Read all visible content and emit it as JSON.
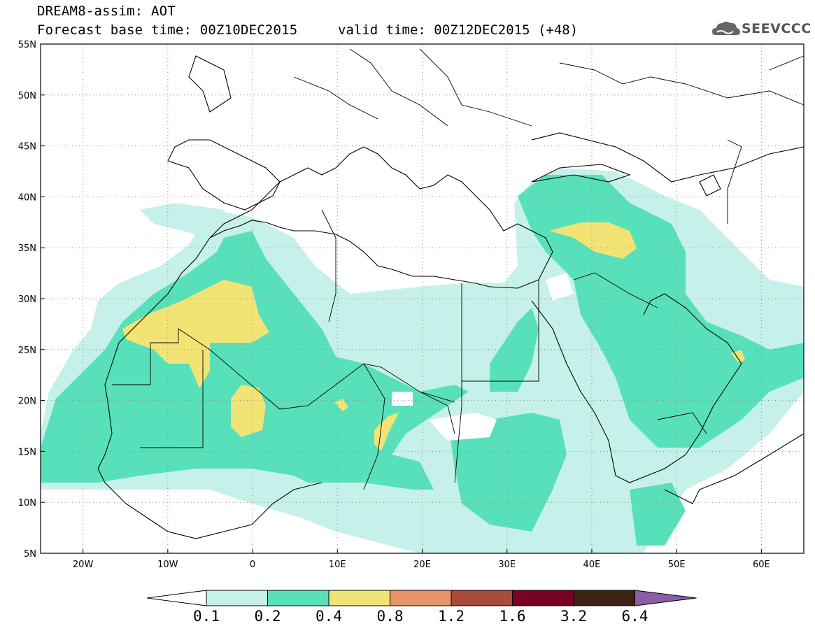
{
  "header": {
    "title_line1": "DREAM8-assim: AOT",
    "title_line2": "Forecast base time: 00Z10DEC2015",
    "valid_time": "valid time: 00Z12DEC2015 (+48)",
    "logo_text": "SEEVCCC",
    "logo_icon": "cloud-icon"
  },
  "map": {
    "lat_labels": [
      "55N",
      "50N",
      "45N",
      "40N",
      "35N",
      "30N",
      "25N",
      "20N",
      "15N",
      "10N",
      "5N"
    ],
    "lon_labels": [
      "20W",
      "10W",
      "0",
      "10E",
      "20E",
      "30E",
      "40E",
      "50E",
      "60E"
    ],
    "lat_range": [
      5,
      55
    ],
    "lon_range": [
      -25,
      65
    ],
    "grid": "dotted"
  },
  "colorbar": {
    "labels": [
      "0.1",
      "0.2",
      "0.4",
      "0.8",
      "1.2",
      "1.6",
      "3.2",
      "6.4"
    ],
    "colors": [
      "#ffffff",
      "#c6f0ea",
      "#58e0ba",
      "#f2e474",
      "#e8946a",
      "#a84a3c",
      "#7a0024",
      "#3d2114",
      "#8a5da6"
    ]
  }
}
